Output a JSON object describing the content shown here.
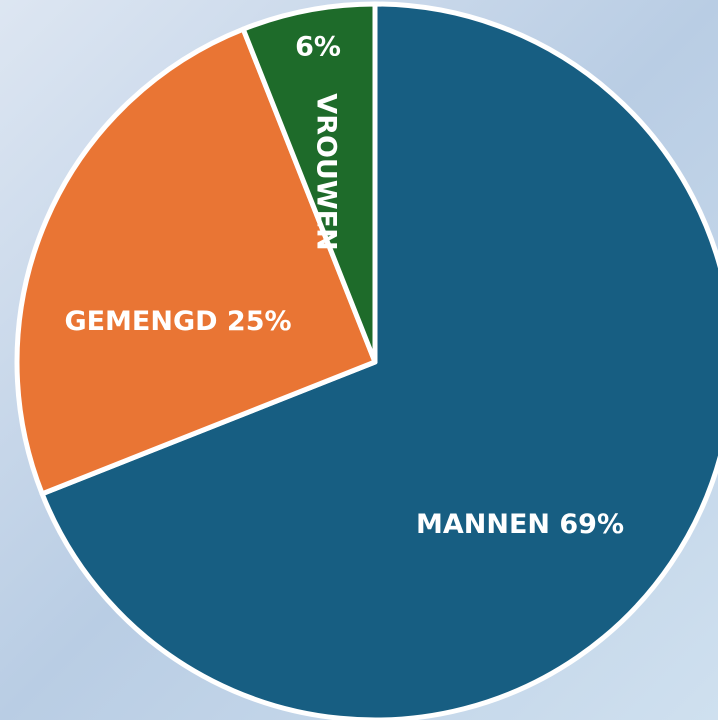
{
  "chart_data": {
    "type": "pie",
    "categories": [
      "MANNEN",
      "GEMENGD",
      "VROUWEN"
    ],
    "values": [
      69,
      25,
      6
    ],
    "value_labels": [
      "69%",
      "25%",
      "6%"
    ],
    "colors": [
      "#175e82",
      "#e97534",
      "#1e6b2a"
    ],
    "start_angle": 0,
    "direction": "clockwise"
  }
}
